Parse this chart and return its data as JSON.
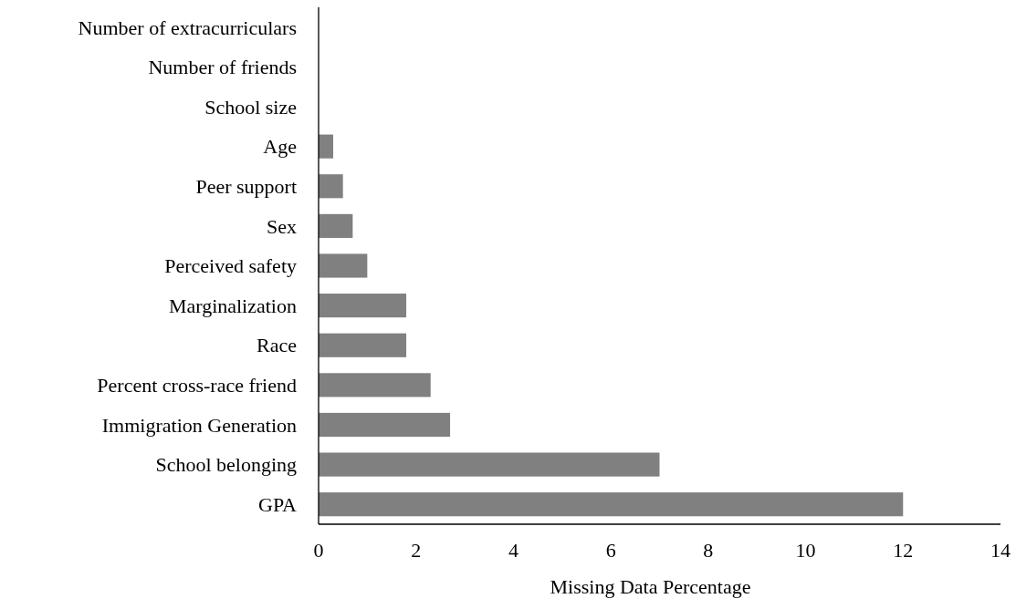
{
  "chart_data": {
    "type": "bar",
    "orientation": "horizontal",
    "xlabel": "Missing Data Percentage",
    "categories": [
      "Number of extracurriculars",
      "Number of friends",
      "School size",
      "Age",
      "Peer support",
      "Sex",
      "Perceived safety",
      "Marginalization",
      "Race",
      "Percent cross-race friend",
      "Immigration Generation",
      "School belonging",
      "GPA"
    ],
    "values": [
      0,
      0,
      0,
      0.3,
      0.5,
      0.7,
      1.0,
      1.8,
      1.8,
      2.3,
      2.7,
      7,
      12
    ],
    "color": "#808080",
    "xlim": [
      0,
      14
    ],
    "xticks": [
      0,
      2,
      4,
      6,
      8,
      10,
      12,
      14
    ],
    "grid": false
  }
}
